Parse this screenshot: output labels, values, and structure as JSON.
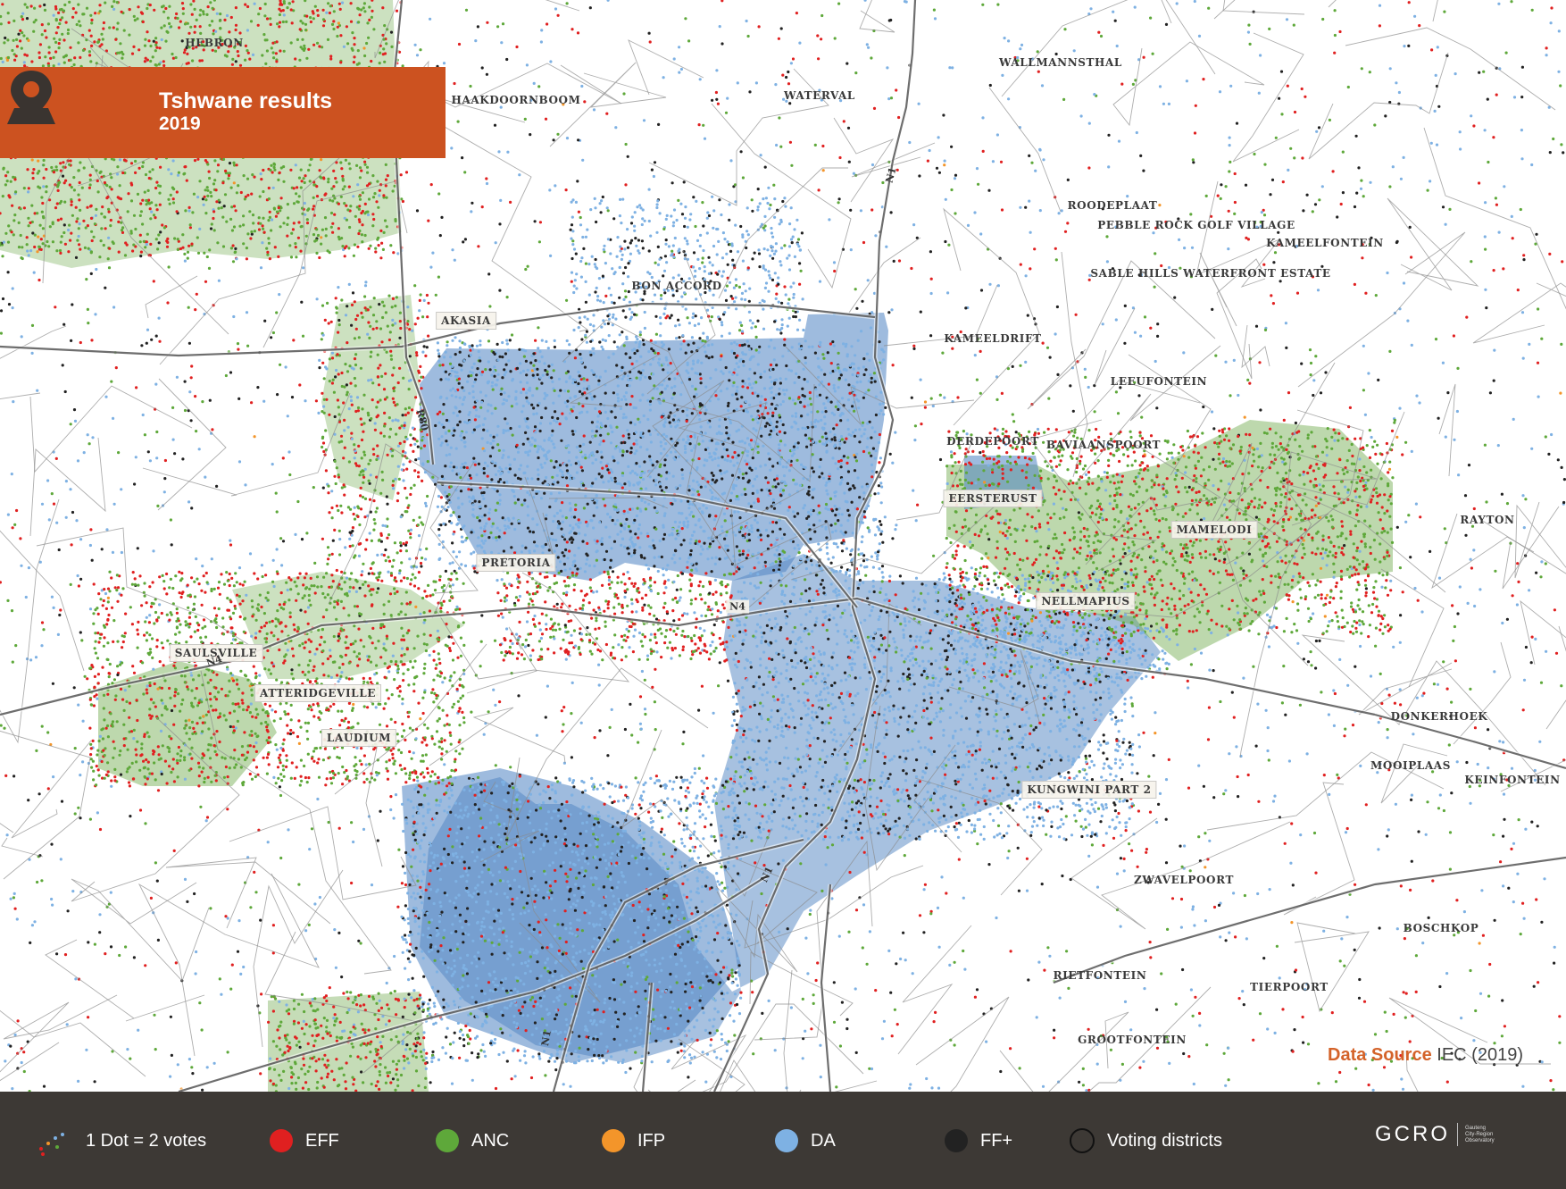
{
  "map": {
    "title": "Tshwane results",
    "year": "2019",
    "icon": "map-pin-icon",
    "source_label": "Data Source",
    "source_value": "IEC (2019)",
    "places": [
      {
        "name": "HEBRON",
        "boxed": false
      },
      {
        "name": "HAAKDOORNBOOM",
        "boxed": false
      },
      {
        "name": "WATERVAL",
        "boxed": false
      },
      {
        "name": "WALLMANNSTHAL",
        "boxed": false
      },
      {
        "name": "ROODEPLAAT",
        "boxed": false
      },
      {
        "name": "PEBBLE ROCK GOLF VILLAGE",
        "boxed": false
      },
      {
        "name": "KAMEELFONTEIN",
        "boxed": false
      },
      {
        "name": "SABLE HILLS WATERFRONT ESTATE",
        "boxed": false
      },
      {
        "name": "BON ACCORD",
        "boxed": false
      },
      {
        "name": "AKASIA",
        "boxed": true
      },
      {
        "name": "KAMEELDRIFT",
        "boxed": false
      },
      {
        "name": "LEEUFONTEIN",
        "boxed": false
      },
      {
        "name": "DERDEPOORT",
        "boxed": false
      },
      {
        "name": "BAVIAANSPOORT",
        "boxed": false
      },
      {
        "name": "EERSTERUST",
        "boxed": true
      },
      {
        "name": "MAMELODI",
        "boxed": true
      },
      {
        "name": "RAYTON",
        "boxed": false
      },
      {
        "name": "PRETORIA",
        "boxed": true
      },
      {
        "name": "NELLMAPIUS",
        "boxed": true
      },
      {
        "name": "SAULSVILLE",
        "boxed": true
      },
      {
        "name": "ATTERIDGEVILLE",
        "boxed": true
      },
      {
        "name": "LAUDIUM",
        "boxed": true
      },
      {
        "name": "DONKERHOEK",
        "boxed": false
      },
      {
        "name": "MOOIPLAAS",
        "boxed": false
      },
      {
        "name": "KEINFONTEIN",
        "boxed": false
      },
      {
        "name": "KUNGWINI PART 2",
        "boxed": true
      },
      {
        "name": "ZWAVELPOORT",
        "boxed": false
      },
      {
        "name": "BOSCHKOP",
        "boxed": false
      },
      {
        "name": "RIETFONTEIN",
        "boxed": false
      },
      {
        "name": "TIERPOORT",
        "boxed": false
      },
      {
        "name": "GROOTFONTEIN",
        "boxed": false
      }
    ],
    "roads": [
      {
        "name": "N1",
        "boxed": false
      },
      {
        "name": "R80",
        "boxed": false
      },
      {
        "name": "N4",
        "boxed": true
      },
      {
        "name": "N4",
        "boxed": false
      },
      {
        "name": "N1",
        "boxed": false
      },
      {
        "name": "N1",
        "boxed": false
      }
    ]
  },
  "legend": {
    "dot_scale": "1 Dot = 2 votes",
    "items": [
      {
        "label": "EFF",
        "color": "#e02020",
        "icon": "eff-dot-icon"
      },
      {
        "label": "ANC",
        "color": "#5ea83a",
        "icon": "anc-dot-icon"
      },
      {
        "label": "IFP",
        "color": "#f3952a",
        "icon": "ifp-dot-icon"
      },
      {
        "label": "DA",
        "color": "#7eb1e3",
        "icon": "da-dot-icon"
      },
      {
        "label": "FF+",
        "color": "#222222",
        "icon": "ffplus-dot-icon"
      }
    ],
    "districts_label": "Voting districts",
    "logo": "GCRO",
    "logo_sub": [
      "Gauteng",
      "City-Region",
      "Observatory"
    ]
  },
  "colors": {
    "banner": "#cc5220",
    "legend_bg": "#3d3935",
    "da_fill": "#4f83c2",
    "anc_fill": "#6da84a",
    "source_accent": "#d4632a"
  }
}
